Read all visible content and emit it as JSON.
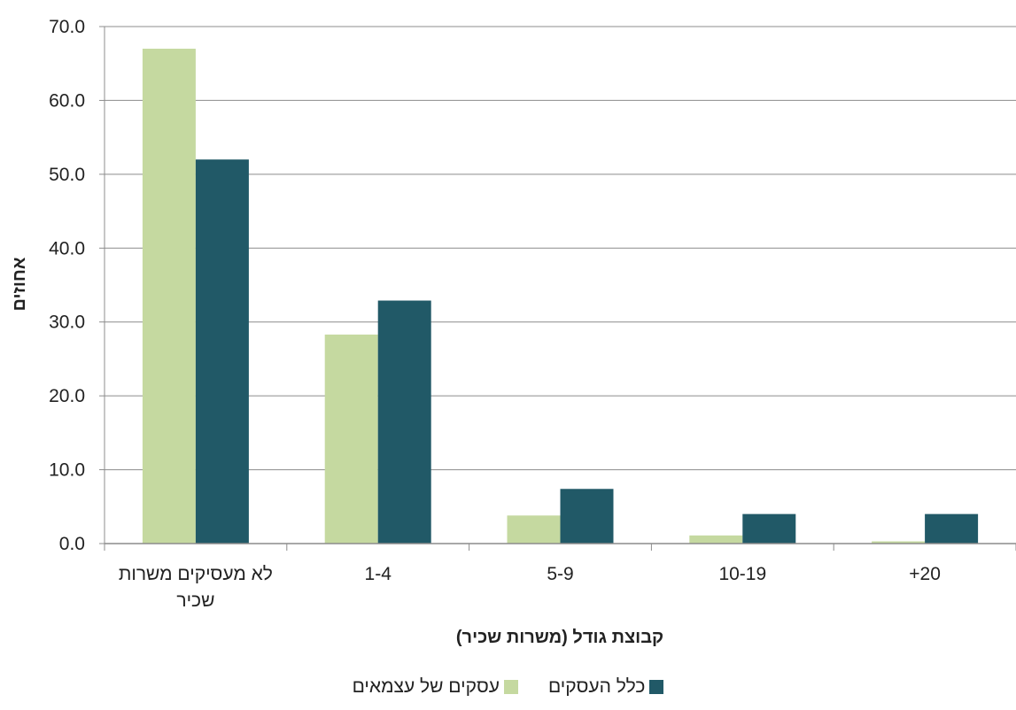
{
  "chart_data": {
    "type": "bar",
    "categories": [
      "לא מעסיקים משרות שכיר",
      "1-4",
      "5-9",
      "10-19",
      "20+"
    ],
    "series": [
      {
        "name": "עסקים של עצמאים",
        "color": "#c5d9a0",
        "values": [
          67.0,
          28.3,
          3.8,
          1.1,
          0.3
        ]
      },
      {
        "name": "כלל העסקים",
        "color": "#215967",
        "values": [
          52.0,
          32.9,
          7.4,
          4.0,
          4.0
        ]
      }
    ],
    "xlabel": "קבוצת גודל (משרות שכיר)",
    "ylabel": "אחוזים",
    "ylim": [
      0,
      70
    ],
    "yticks": [
      "0.0",
      "10.0",
      "20.0",
      "30.0",
      "40.0",
      "50.0",
      "60.0",
      "70.0"
    ],
    "grid": true,
    "legend_position": "bottom"
  }
}
